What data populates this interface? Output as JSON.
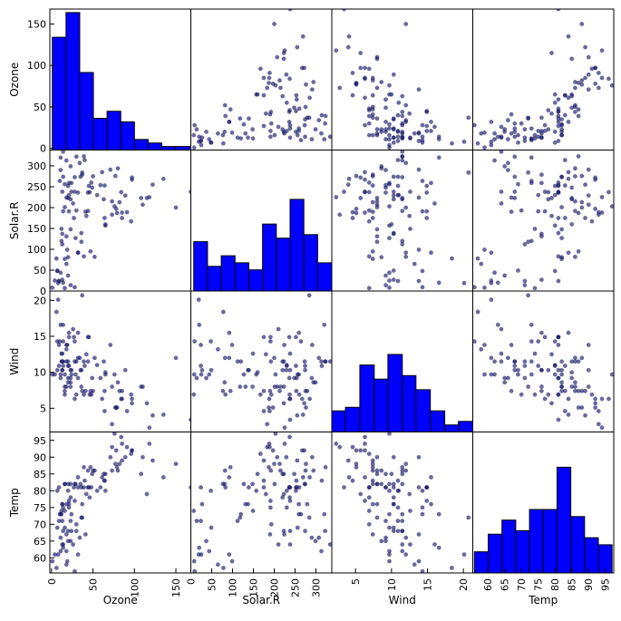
{
  "chart_data": {
    "type": "scatter_matrix",
    "variables": [
      "Ozone",
      "Solar.R",
      "Wind",
      "Temp"
    ],
    "ranges": {
      "Ozone": [
        -2,
        168
      ],
      "Solar.R": [
        0,
        338
      ],
      "Wind": [
        1.7,
        21.3
      ],
      "Temp": [
        55.5,
        97.5
      ]
    },
    "ticks": {
      "Ozone": {
        "y": [
          0,
          50,
          100,
          150
        ],
        "x": [
          0,
          50,
          100,
          150
        ]
      },
      "Solar.R": {
        "y": [
          0,
          50,
          100,
          150,
          200,
          250,
          300
        ],
        "x": [
          0,
          50,
          100,
          150,
          200,
          250,
          300
        ]
      },
      "Wind": {
        "y": [
          5,
          10,
          15,
          20
        ],
        "x": [
          5,
          10,
          15,
          20
        ]
      },
      "Temp": {
        "y": [
          60,
          65,
          70,
          75,
          80,
          85,
          90,
          95
        ],
        "x": [
          60,
          65,
          70,
          75,
          80,
          85,
          90,
          95
        ]
      }
    },
    "histograms": {
      "Ozone": [
        {
          "x0": 1,
          "x1": 17.5,
          "count": 32
        },
        {
          "x0": 17.5,
          "x1": 34,
          "count": 39
        },
        {
          "x0": 34,
          "x1": 50.5,
          "count": 22
        },
        {
          "x0": 50.5,
          "x1": 67,
          "count": 9
        },
        {
          "x0": 67,
          "x1": 83.5,
          "count": 11
        },
        {
          "x0": 83.5,
          "x1": 100,
          "count": 8
        },
        {
          "x0": 100,
          "x1": 116.5,
          "count": 3
        },
        {
          "x0": 116.5,
          "x1": 133,
          "count": 2
        },
        {
          "x0": 133,
          "x1": 149.5,
          "count": 1
        },
        {
          "x0": 149.5,
          "x1": 168,
          "count": 1
        }
      ],
      "Solar.R": [
        {
          "x0": 7,
          "x1": 40,
          "count": 14
        },
        {
          "x0": 40,
          "x1": 73,
          "count": 7
        },
        {
          "x0": 73,
          "x1": 106,
          "count": 10
        },
        {
          "x0": 106,
          "x1": 139,
          "count": 8
        },
        {
          "x0": 139,
          "x1": 172,
          "count": 6
        },
        {
          "x0": 172,
          "x1": 205,
          "count": 19
        },
        {
          "x0": 205,
          "x1": 238,
          "count": 15
        },
        {
          "x0": 238,
          "x1": 271,
          "count": 26
        },
        {
          "x0": 271,
          "x1": 304,
          "count": 16
        },
        {
          "x0": 304,
          "x1": 338,
          "count": 8
        }
      ],
      "Wind": [
        {
          "x0": 1.7,
          "x1": 3.6,
          "count": 6
        },
        {
          "x0": 3.6,
          "x1": 5.6,
          "count": 7
        },
        {
          "x0": 5.6,
          "x1": 7.6,
          "count": 19
        },
        {
          "x0": 7.6,
          "x1": 9.5,
          "count": 15
        },
        {
          "x0": 9.5,
          "x1": 11.5,
          "count": 22
        },
        {
          "x0": 11.5,
          "x1": 13.4,
          "count": 16
        },
        {
          "x0": 13.4,
          "x1": 15.4,
          "count": 12
        },
        {
          "x0": 15.4,
          "x1": 17.4,
          "count": 6
        },
        {
          "x0": 17.4,
          "x1": 19.3,
          "count": 2
        },
        {
          "x0": 19.3,
          "x1": 21.3,
          "count": 3
        }
      ],
      "Temp": [
        {
          "x0": 56,
          "x1": 60.1,
          "count": 6
        },
        {
          "x0": 60.1,
          "x1": 64.2,
          "count": 11
        },
        {
          "x0": 64.2,
          "x1": 68.3,
          "count": 15
        },
        {
          "x0": 68.3,
          "x1": 72.4,
          "count": 12
        },
        {
          "x0": 72.4,
          "x1": 76.5,
          "count": 18
        },
        {
          "x0": 76.5,
          "x1": 80.6,
          "count": 18
        },
        {
          "x0": 80.6,
          "x1": 84.7,
          "count": 30
        },
        {
          "x0": 84.7,
          "x1": 88.8,
          "count": 16
        },
        {
          "x0": 88.8,
          "x1": 92.9,
          "count": 10
        },
        {
          "x0": 92.9,
          "x1": 97,
          "count": 8
        }
      ]
    },
    "hist_ymax": 40,
    "points": [
      [
        41,
        190,
        7.4,
        67
      ],
      [
        36,
        118,
        8.0,
        72
      ],
      [
        12,
        149,
        12.6,
        74
      ],
      [
        18,
        313,
        11.5,
        62
      ],
      [
        28,
        9,
        14.3,
        56
      ],
      [
        23,
        299,
        8.6,
        65
      ],
      [
        19,
        99,
        13.8,
        59
      ],
      [
        8,
        19,
        20.1,
        61
      ],
      [
        16,
        256,
        9.7,
        69
      ],
      [
        11,
        290,
        9.2,
        66
      ],
      [
        14,
        274,
        10.9,
        68
      ],
      [
        18,
        65,
        13.2,
        58
      ],
      [
        14,
        334,
        11.5,
        64
      ],
      [
        34,
        307,
        12.0,
        66
      ],
      [
        6,
        78,
        18.4,
        57
      ],
      [
        30,
        322,
        11.5,
        68
      ],
      [
        11,
        44,
        9.7,
        62
      ],
      [
        1,
        8,
        9.7,
        59
      ],
      [
        11,
        320,
        16.6,
        73
      ],
      [
        4,
        25,
        9.7,
        61
      ],
      [
        32,
        92,
        12.0,
        61
      ],
      [
        45,
        252,
        14.9,
        81
      ],
      [
        115,
        223,
        5.7,
        79
      ],
      [
        37,
        279,
        7.4,
        76
      ],
      [
        29,
        127,
        9.7,
        82
      ],
      [
        71,
        291,
        13.8,
        90
      ],
      [
        39,
        323,
        11.5,
        87
      ],
      [
        23,
        148,
        8.0,
        82
      ],
      [
        21,
        191,
        14.9,
        77
      ],
      [
        37,
        284,
        20.7,
        72
      ],
      [
        20,
        37,
        9.2,
        65
      ],
      [
        12,
        120,
        11.5,
        73
      ],
      [
        13,
        137,
        10.3,
        76
      ],
      [
        135,
        269,
        4.1,
        84
      ],
      [
        49,
        248,
        9.2,
        85
      ],
      [
        32,
        236,
        9.2,
        81
      ],
      [
        64,
        175,
        4.6,
        83
      ],
      [
        40,
        314,
        10.9,
        83
      ],
      [
        77,
        276,
        5.1,
        88
      ],
      [
        97,
        267,
        6.3,
        92
      ],
      [
        97,
        272,
        5.7,
        92
      ],
      [
        85,
        175,
        7.4,
        89
      ],
      [
        10,
        264,
        14.3,
        73
      ],
      [
        27,
        175,
        14.9,
        81
      ],
      [
        7,
        48,
        14.3,
        80
      ],
      [
        48,
        260,
        6.9,
        81
      ],
      [
        35,
        274,
        10.3,
        82
      ],
      [
        61,
        285,
        6.3,
        84
      ],
      [
        79,
        187,
        5.1,
        87
      ],
      [
        63,
        220,
        11.5,
        85
      ],
      [
        16,
        7,
        6.9,
        74
      ],
      [
        80,
        294,
        8.6,
        86
      ],
      [
        108,
        223,
        8.0,
        85
      ],
      [
        20,
        81,
        8.6,
        82
      ],
      [
        52,
        82,
        12.0,
        86
      ],
      [
        82,
        213,
        7.4,
        88
      ],
      [
        50,
        275,
        7.4,
        86
      ],
      [
        64,
        253,
        7.4,
        83
      ],
      [
        59,
        254,
        9.2,
        81
      ],
      [
        39,
        83,
        6.9,
        81
      ],
      [
        9,
        24,
        13.8,
        81
      ],
      [
        16,
        77,
        7.4,
        82
      ],
      [
        122,
        255,
        4.0,
        89
      ],
      [
        89,
        229,
        10.3,
        90
      ],
      [
        110,
        207,
        8.0,
        90
      ],
      [
        44,
        192,
        11.5,
        86
      ],
      [
        28,
        273,
        11.5,
        82
      ],
      [
        65,
        157,
        9.7,
        80
      ],
      [
        168,
        238,
        3.4,
        81
      ],
      [
        73,
        215,
        8.0,
        86
      ],
      [
        76,
        203,
        9.7,
        97
      ],
      [
        118,
        225,
        2.3,
        94
      ],
      [
        84,
        237,
        6.3,
        96
      ],
      [
        85,
        188,
        6.3,
        94
      ],
      [
        96,
        167,
        6.9,
        91
      ],
      [
        78,
        197,
        5.1,
        92
      ],
      [
        73,
        183,
        2.8,
        93
      ],
      [
        91,
        189,
        4.6,
        93
      ],
      [
        47,
        95,
        7.4,
        87
      ],
      [
        32,
        92,
        15.5,
        84
      ],
      [
        20,
        252,
        10.9,
        80
      ],
      [
        23,
        220,
        10.3,
        78
      ],
      [
        21,
        230,
        10.9,
        75
      ],
      [
        24,
        259,
        9.7,
        73
      ],
      [
        44,
        236,
        14.9,
        81
      ],
      [
        21,
        259,
        15.5,
        76
      ],
      [
        28,
        238,
        6.3,
        77
      ],
      [
        9,
        24,
        10.9,
        71
      ],
      [
        13,
        112,
        11.5,
        71
      ],
      [
        46,
        237,
        6.9,
        78
      ],
      [
        18,
        224,
        13.8,
        67
      ],
      [
        13,
        27,
        10.3,
        76
      ],
      [
        24,
        238,
        10.3,
        68
      ],
      [
        16,
        201,
        8.0,
        82
      ],
      [
        13,
        238,
        12.6,
        64
      ],
      [
        23,
        14,
        9.2,
        71
      ],
      [
        36,
        139,
        10.3,
        81
      ],
      [
        7,
        49,
        10.3,
        69
      ],
      [
        14,
        20,
        16.6,
        63
      ],
      [
        30,
        193,
        6.9,
        70
      ],
      [
        14,
        191,
        14.3,
        75
      ],
      [
        18,
        131,
        8.0,
        76
      ],
      [
        20,
        223,
        11.5,
        68
      ],
      [
        150,
        200,
        12.0,
        88
      ],
      [
        65,
        160,
        10.0,
        85
      ],
      [
        55,
        230,
        11.0,
        80
      ],
      [
        42,
        180,
        12.5,
        79
      ],
      [
        26,
        210,
        16.0,
        64
      ]
    ]
  }
}
